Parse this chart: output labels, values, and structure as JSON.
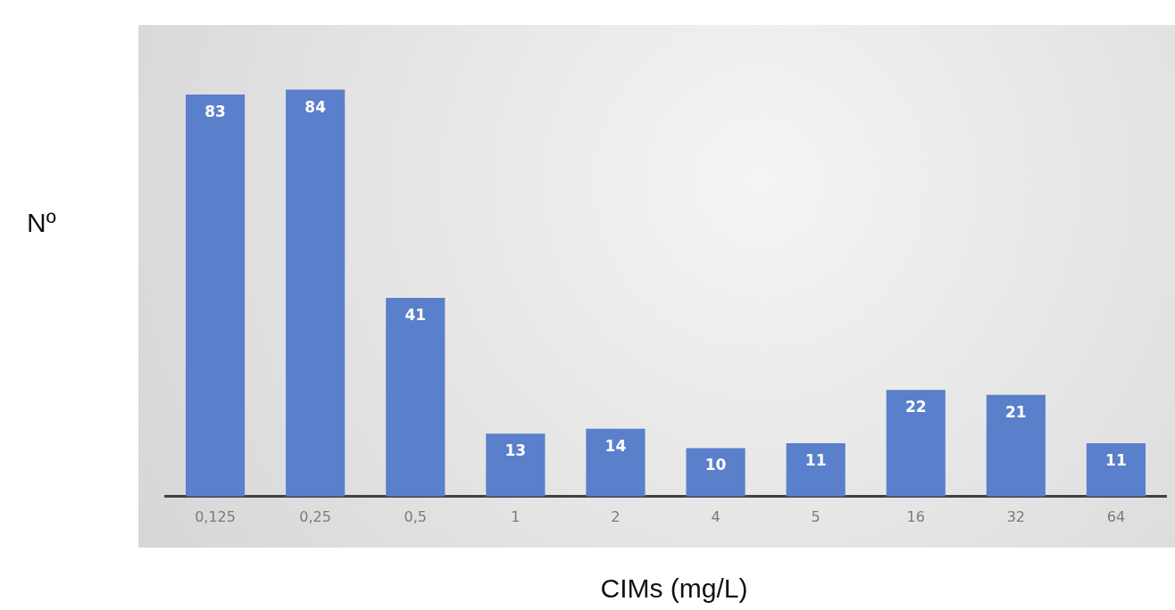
{
  "chart_data": {
    "type": "bar",
    "xlabel": "CIMs (mg/L)",
    "ylabel": "Nº",
    "categories": [
      "0,125",
      "0,25",
      "0,5",
      "1",
      "2",
      "4",
      "5",
      "16",
      "32",
      "64"
    ],
    "values": [
      83,
      84,
      41,
      13,
      14,
      10,
      11,
      22,
      21,
      11
    ],
    "color": "#5a7fcb",
    "data_labels": true,
    "grid": false,
    "legend": false,
    "tick_labels": "x"
  }
}
